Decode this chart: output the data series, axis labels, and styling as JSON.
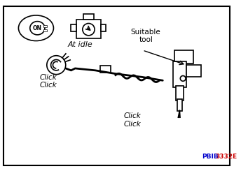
{
  "title": "",
  "background_color": "#ffffff",
  "border_color": "#000000",
  "text_color": "#000000",
  "label_at_idle": "At idle",
  "label_suitable_tool": "Suitable\ntool",
  "label_click1_top": "Click\nClick",
  "label_click2_bottom": "Click\nClick",
  "label_code": "PBIB3332E",
  "label_code_color_PB": "#0000cc",
  "label_code_color_IB": "#cc0000",
  "label_code_color_rest": "#000000",
  "fig_width": 3.44,
  "fig_height": 2.45,
  "dpi": 100
}
